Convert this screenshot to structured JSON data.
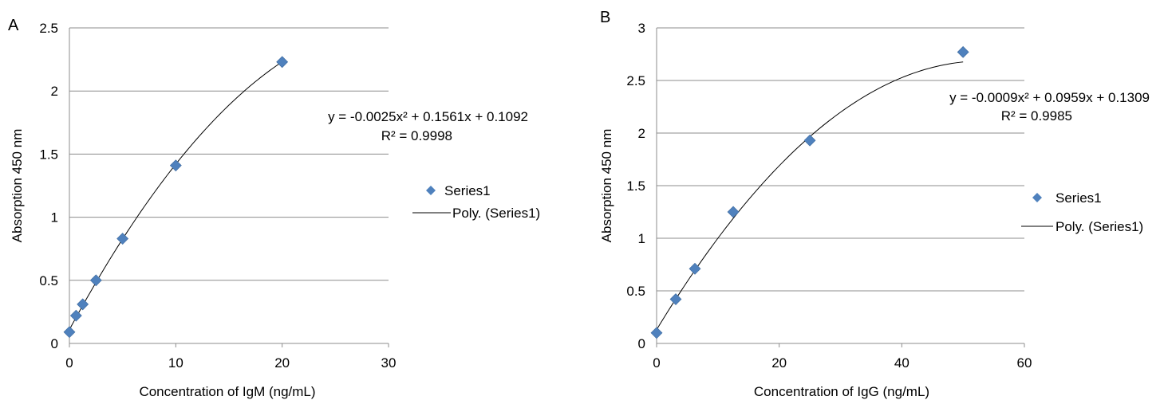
{
  "chart_data": [
    {
      "type": "scatter",
      "panel_label": "A",
      "xlabel": "Concentration of IgM (ng/mL)",
      "ylabel": "Absorption 450 nm",
      "xlim": [
        0,
        30
      ],
      "ylim": [
        0,
        2.5
      ],
      "x_ticks": [
        "0",
        "10",
        "20",
        "30"
      ],
      "y_ticks": [
        "0",
        "0.5",
        "1",
        "1.5",
        "2",
        "2.5"
      ],
      "grid": "horizontal",
      "series": [
        {
          "name": "Series1",
          "marker": "diamond",
          "color": "#4f81bd",
          "x": [
            0,
            0.625,
            1.25,
            2.5,
            5,
            10,
            20
          ],
          "y": [
            0.09,
            0.22,
            0.31,
            0.5,
            0.83,
            1.41,
            2.23
          ]
        }
      ],
      "trendline": {
        "name": "Poly. (Series1)",
        "coefficients": [
          -0.0025,
          0.1561,
          0.1092
        ],
        "x_range": [
          0,
          20
        ],
        "equation": "y = -0.0025x² + 0.1561x + 0.1092",
        "r_squared": "R² = 0.9998"
      },
      "legend": {
        "placement": "right",
        "entries": [
          "Series1",
          "Poly. (Series1)"
        ]
      }
    },
    {
      "type": "scatter",
      "panel_label": "B",
      "xlabel": "Concentration of IgG (ng/mL)",
      "ylabel": "Absorption 450 nm",
      "xlim": [
        0,
        60
      ],
      "ylim": [
        0,
        3
      ],
      "x_ticks": [
        "0",
        "20",
        "40",
        "60"
      ],
      "y_ticks": [
        "0",
        "0.5",
        "1",
        "1.5",
        "2",
        "2.5",
        "3"
      ],
      "grid": "horizontal",
      "series": [
        {
          "name": "Series1",
          "marker": "diamond",
          "color": "#4f81bd",
          "x": [
            0,
            3.125,
            6.25,
            12.5,
            25,
            50
          ],
          "y": [
            0.1,
            0.42,
            0.71,
            1.25,
            1.93,
            2.77
          ]
        }
      ],
      "trendline": {
        "name": "Poly. (Series1)",
        "coefficients": [
          -0.0009,
          0.0959,
          0.1309
        ],
        "x_range": [
          0,
          50
        ],
        "equation": "y = -0.0009x² + 0.0959x + 0.1309",
        "r_squared": "R² = 0.9985"
      },
      "legend": {
        "placement": "right",
        "entries": [
          "Series1",
          "Poly. (Series1)"
        ]
      }
    }
  ]
}
